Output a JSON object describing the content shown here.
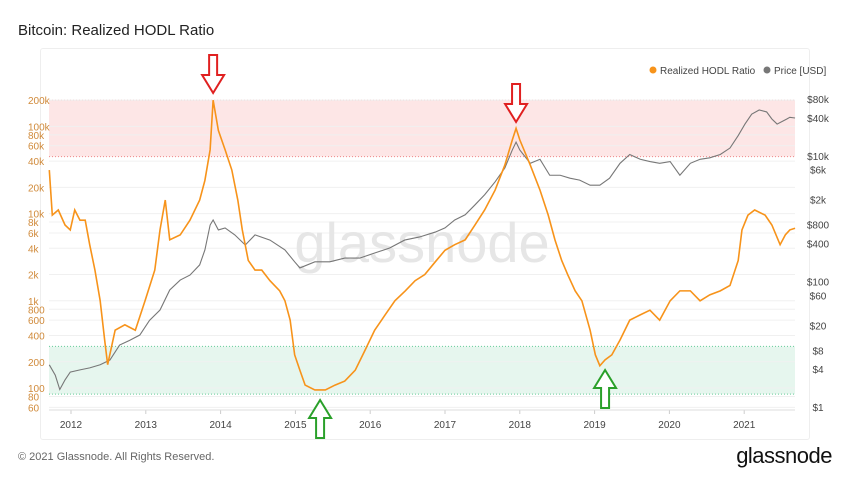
{
  "title": "Bitcoin: Realized HODL Ratio",
  "footer": "© 2021 Glassnode. All Rights Reserved.",
  "logo": "glassnode",
  "watermark": "glassnode",
  "colors": {
    "hodl": "#f7931a",
    "price": "#777777",
    "red_band": "#fde6e6",
    "green_band": "#e6f6ee",
    "red_arrow": "#e02020",
    "green_arrow": "#2aa02a"
  },
  "chart_data": {
    "type": "line",
    "title": "Bitcoin: Realized HODL Ratio",
    "legend": [
      "Realized HODL Ratio",
      "Price [USD]"
    ],
    "legend_position": "top-right",
    "x_ticks": [
      "2012",
      "2013",
      "2014",
      "2015",
      "2016",
      "2017",
      "2018",
      "2019",
      "2020",
      "2021"
    ],
    "y_left": {
      "scale": "log",
      "range": [
        55,
        260000
      ],
      "ticks": [
        {
          "v": 200000,
          "l": "200k"
        },
        {
          "v": 100000,
          "l": "100k"
        },
        {
          "v": 80000,
          "l": "80k"
        },
        {
          "v": 60000,
          "l": "60k"
        },
        {
          "v": 40000,
          "l": "40k"
        },
        {
          "v": 20000,
          "l": "20k"
        },
        {
          "v": 10000,
          "l": "10k"
        },
        {
          "v": 8000,
          "l": "8k"
        },
        {
          "v": 6000,
          "l": "6k"
        },
        {
          "v": 4000,
          "l": "4k"
        },
        {
          "v": 2000,
          "l": "2k"
        },
        {
          "v": 1000,
          "l": "1k"
        },
        {
          "v": 800,
          "l": "800"
        },
        {
          "v": 600,
          "l": "600"
        },
        {
          "v": 400,
          "l": "400"
        },
        {
          "v": 200,
          "l": "200"
        },
        {
          "v": 100,
          "l": "100"
        },
        {
          "v": 80,
          "l": "80"
        },
        {
          "v": 60,
          "l": "60"
        }
      ]
    },
    "y_right": {
      "scale": "log",
      "range": [
        1,
        100000
      ],
      "ticks": [
        {
          "v": 80000,
          "l": "$80k"
        },
        {
          "v": 40000,
          "l": "$40k"
        },
        {
          "v": 10000,
          "l": "$10k"
        },
        {
          "v": 6000,
          "l": "$6k"
        },
        {
          "v": 2000,
          "l": "$2k"
        },
        {
          "v": 800,
          "l": "$800"
        },
        {
          "v": 400,
          "l": "$400"
        },
        {
          "v": 100,
          "l": "$100"
        },
        {
          "v": 60,
          "l": "$60"
        },
        {
          "v": 20,
          "l": "$20"
        },
        {
          "v": 8,
          "l": "$8"
        },
        {
          "v": 4,
          "l": "$4"
        },
        {
          "v": 1,
          "l": "$1"
        }
      ]
    },
    "bands": [
      {
        "name": "top-zone",
        "from": 45000,
        "to": 200000
      },
      {
        "name": "bottom-zone",
        "from": 85,
        "to": 300
      }
    ],
    "arrows": [
      {
        "type": "down",
        "x": 2013.9
      },
      {
        "type": "down",
        "x": 2017.95
      },
      {
        "type": "up",
        "x": 2015.33
      },
      {
        "type": "up",
        "x": 2019.14
      }
    ],
    "series": [
      {
        "name": "Realized HODL Ratio",
        "points": [
          [
            2011.71,
            31600
          ],
          [
            2011.75,
            9600
          ],
          [
            2011.83,
            11000
          ],
          [
            2011.92,
            7400
          ],
          [
            2011.99,
            6500
          ],
          [
            2012.05,
            11000
          ],
          [
            2012.12,
            8400
          ],
          [
            2012.19,
            8400
          ],
          [
            2012.25,
            4400
          ],
          [
            2012.32,
            2250
          ],
          [
            2012.39,
            1000
          ],
          [
            2012.45,
            355
          ],
          [
            2012.49,
            185
          ],
          [
            2012.59,
            460
          ],
          [
            2012.72,
            530
          ],
          [
            2012.86,
            460
          ],
          [
            2012.99,
            1000
          ],
          [
            2013.12,
            2250
          ],
          [
            2013.19,
            6500
          ],
          [
            2013.26,
            14300
          ],
          [
            2013.32,
            5000
          ],
          [
            2013.46,
            5700
          ],
          [
            2013.59,
            8400
          ],
          [
            2013.72,
            14300
          ],
          [
            2013.79,
            24000
          ],
          [
            2013.86,
            54000
          ],
          [
            2013.9,
            200000
          ],
          [
            2013.97,
            90000
          ],
          [
            2014.06,
            54000
          ],
          [
            2014.15,
            31600
          ],
          [
            2014.23,
            14300
          ],
          [
            2014.29,
            6500
          ],
          [
            2014.37,
            2900
          ],
          [
            2014.46,
            2250
          ],
          [
            2014.55,
            2250
          ],
          [
            2014.66,
            1700
          ],
          [
            2014.79,
            1300
          ],
          [
            2014.86,
            1000
          ],
          [
            2014.93,
            600
          ],
          [
            2014.99,
            240
          ],
          [
            2015.06,
            160
          ],
          [
            2015.13,
            108
          ],
          [
            2015.26,
            95
          ],
          [
            2015.4,
            95
          ],
          [
            2015.53,
            108
          ],
          [
            2015.66,
            120
          ],
          [
            2015.8,
            160
          ],
          [
            2015.93,
            270
          ],
          [
            2016.06,
            460
          ],
          [
            2016.2,
            690
          ],
          [
            2016.33,
            1000
          ],
          [
            2016.47,
            1300
          ],
          [
            2016.6,
            1700
          ],
          [
            2016.73,
            2000
          ],
          [
            2016.87,
            2800
          ],
          [
            2017.0,
            3800
          ],
          [
            2017.13,
            4400
          ],
          [
            2017.27,
            5000
          ],
          [
            2017.4,
            7400
          ],
          [
            2017.53,
            11000
          ],
          [
            2017.67,
            18600
          ],
          [
            2017.8,
            36000
          ],
          [
            2017.9,
            70000
          ],
          [
            2017.95,
            95000
          ],
          [
            2018.0,
            70000
          ],
          [
            2018.14,
            36000
          ],
          [
            2018.27,
            18600
          ],
          [
            2018.38,
            9600
          ],
          [
            2018.47,
            5000
          ],
          [
            2018.56,
            2900
          ],
          [
            2018.64,
            2000
          ],
          [
            2018.74,
            1300
          ],
          [
            2018.83,
            1000
          ],
          [
            2018.94,
            460
          ],
          [
            2019.01,
            240
          ],
          [
            2019.07,
            180
          ],
          [
            2019.14,
            210
          ],
          [
            2019.23,
            240
          ],
          [
            2019.34,
            355
          ],
          [
            2019.47,
            600
          ],
          [
            2019.61,
            690
          ],
          [
            2019.74,
            780
          ],
          [
            2019.87,
            600
          ],
          [
            2020.01,
            1000
          ],
          [
            2020.14,
            1300
          ],
          [
            2020.28,
            1300
          ],
          [
            2020.41,
            1000
          ],
          [
            2020.54,
            1170
          ],
          [
            2020.68,
            1300
          ],
          [
            2020.81,
            1500
          ],
          [
            2020.92,
            2900
          ],
          [
            2020.97,
            6500
          ],
          [
            2021.05,
            9600
          ],
          [
            2021.14,
            11000
          ],
          [
            2021.28,
            9600
          ],
          [
            2021.37,
            7400
          ],
          [
            2021.48,
            4400
          ],
          [
            2021.55,
            5700
          ],
          [
            2021.61,
            6500
          ],
          [
            2021.68,
            6800
          ]
        ]
      },
      {
        "name": "Price [USD]",
        "points": [
          [
            2011.71,
            4.7
          ],
          [
            2011.79,
            3.2
          ],
          [
            2011.85,
            1.9
          ],
          [
            2011.92,
            2.7
          ],
          [
            2011.99,
            3.6
          ],
          [
            2012.12,
            3.9
          ],
          [
            2012.25,
            4.2
          ],
          [
            2012.39,
            4.7
          ],
          [
            2012.52,
            5.6
          ],
          [
            2012.65,
            9.7
          ],
          [
            2012.79,
            11.6
          ],
          [
            2012.92,
            14
          ],
          [
            2013.05,
            24
          ],
          [
            2013.19,
            35
          ],
          [
            2013.32,
            73
          ],
          [
            2013.46,
            105
          ],
          [
            2013.59,
            126
          ],
          [
            2013.72,
            183
          ],
          [
            2013.79,
            317
          ],
          [
            2013.86,
            790
          ],
          [
            2013.9,
            950
          ],
          [
            2013.97,
            660
          ],
          [
            2014.06,
            710
          ],
          [
            2014.19,
            550
          ],
          [
            2014.33,
            380
          ],
          [
            2014.46,
            550
          ],
          [
            2014.66,
            455
          ],
          [
            2014.86,
            317
          ],
          [
            2014.99,
            205
          ],
          [
            2015.06,
            164
          ],
          [
            2015.26,
            205
          ],
          [
            2015.46,
            205
          ],
          [
            2015.66,
            235
          ],
          [
            2015.86,
            235
          ],
          [
            2016.06,
            283
          ],
          [
            2016.26,
            340
          ],
          [
            2016.46,
            455
          ],
          [
            2016.66,
            510
          ],
          [
            2016.87,
            610
          ],
          [
            2017.0,
            710
          ],
          [
            2017.13,
            950
          ],
          [
            2017.27,
            1150
          ],
          [
            2017.4,
            1650
          ],
          [
            2017.53,
            2400
          ],
          [
            2017.67,
            3850
          ],
          [
            2017.8,
            6400
          ],
          [
            2017.9,
            12400
          ],
          [
            2017.95,
            16500
          ],
          [
            2018.0,
            12400
          ],
          [
            2018.14,
            7600
          ],
          [
            2018.27,
            8800
          ],
          [
            2018.4,
            4900
          ],
          [
            2018.54,
            4900
          ],
          [
            2018.67,
            4400
          ],
          [
            2018.8,
            4100
          ],
          [
            2018.94,
            3400
          ],
          [
            2019.07,
            3400
          ],
          [
            2019.2,
            4400
          ],
          [
            2019.34,
            7600
          ],
          [
            2019.47,
            10500
          ],
          [
            2019.61,
            8800
          ],
          [
            2019.74,
            8100
          ],
          [
            2019.87,
            7600
          ],
          [
            2020.01,
            8100
          ],
          [
            2020.14,
            4900
          ],
          [
            2020.28,
            7600
          ],
          [
            2020.41,
            8800
          ],
          [
            2020.54,
            9300
          ],
          [
            2020.68,
            10500
          ],
          [
            2020.81,
            13300
          ],
          [
            2020.92,
            21000
          ],
          [
            2021.01,
            32000
          ],
          [
            2021.1,
            46000
          ],
          [
            2021.2,
            53600
          ],
          [
            2021.3,
            50000
          ],
          [
            2021.37,
            38600
          ],
          [
            2021.44,
            32000
          ],
          [
            2021.57,
            38600
          ],
          [
            2021.61,
            41000
          ],
          [
            2021.68,
            40000
          ]
        ]
      }
    ]
  }
}
